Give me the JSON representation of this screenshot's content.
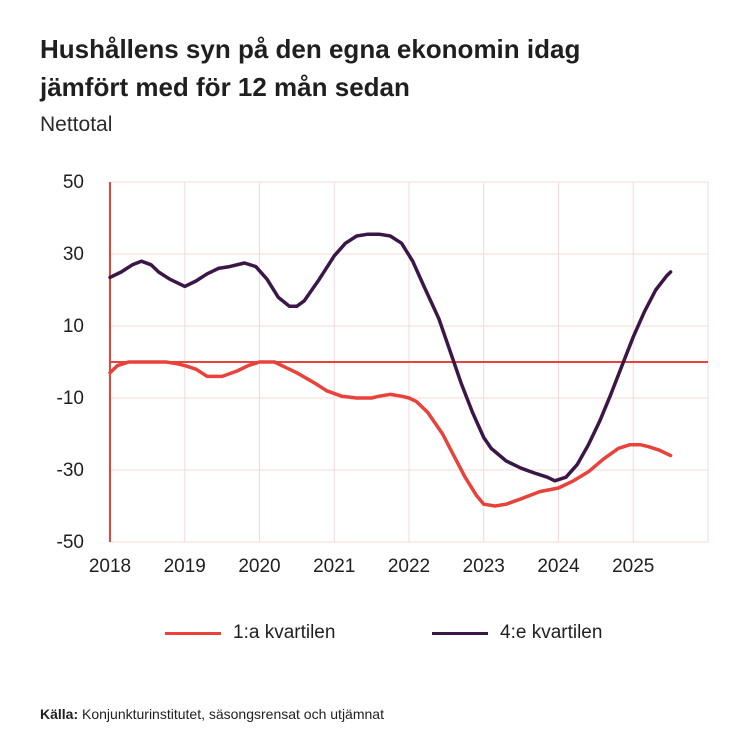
{
  "header": {
    "title_line1": "Hushållens syn på den egna ekonomin idag",
    "title_line2": "jämfört med för 12 mån sedan",
    "unit": "Nettotal"
  },
  "source": {
    "label": "Källa:",
    "text": "Konjunkturinstitutet, säsongsrensat och utjämnat"
  },
  "colors": {
    "q1": "#e8423a",
    "q4": "#3b1748",
    "axis": "#e8423a",
    "grid": "#f6d9d7"
  },
  "chart_data": {
    "type": "line",
    "title": "Hushållens syn på den egna ekonomin idag jämfört med för 12 mån sedan",
    "ylabel": "Nettotal",
    "ylim": [
      -50,
      50
    ],
    "yticks": [
      50,
      30,
      10,
      -10,
      -30,
      -50
    ],
    "xlim": [
      2018,
      2026
    ],
    "xticks": [
      2018,
      2019,
      2020,
      2021,
      2022,
      2023,
      2024,
      2025
    ],
    "grid": true,
    "legend": "bottom",
    "series": [
      {
        "name": "1:a kvartilen",
        "color": "#e8423a",
        "points": [
          [
            2018.0,
            -3
          ],
          [
            2018.1,
            -1
          ],
          [
            2018.25,
            0
          ],
          [
            2018.5,
            0
          ],
          [
            2018.75,
            0
          ],
          [
            2018.9,
            -0.5
          ],
          [
            2019.0,
            -1
          ],
          [
            2019.15,
            -2
          ],
          [
            2019.3,
            -4
          ],
          [
            2019.5,
            -4
          ],
          [
            2019.7,
            -2.5
          ],
          [
            2019.85,
            -1
          ],
          [
            2020.0,
            0
          ],
          [
            2020.2,
            0
          ],
          [
            2020.35,
            -1.5
          ],
          [
            2020.5,
            -3
          ],
          [
            2020.75,
            -6
          ],
          [
            2020.9,
            -8
          ],
          [
            2021.1,
            -9.5
          ],
          [
            2021.3,
            -10
          ],
          [
            2021.5,
            -10
          ],
          [
            2021.6,
            -9.5
          ],
          [
            2021.75,
            -9
          ],
          [
            2021.9,
            -9.5
          ],
          [
            2022.0,
            -10
          ],
          [
            2022.1,
            -11
          ],
          [
            2022.25,
            -14
          ],
          [
            2022.45,
            -20
          ],
          [
            2022.6,
            -26
          ],
          [
            2022.75,
            -32
          ],
          [
            2022.9,
            -37
          ],
          [
            2023.0,
            -39.5
          ],
          [
            2023.15,
            -40
          ],
          [
            2023.3,
            -39.5
          ],
          [
            2023.5,
            -38
          ],
          [
            2023.75,
            -36
          ],
          [
            2024.0,
            -35
          ],
          [
            2024.2,
            -33
          ],
          [
            2024.4,
            -30.5
          ],
          [
            2024.6,
            -27
          ],
          [
            2024.8,
            -24
          ],
          [
            2024.95,
            -23
          ],
          [
            2025.1,
            -23
          ],
          [
            2025.2,
            -23.5
          ],
          [
            2025.35,
            -24.5
          ],
          [
            2025.5,
            -26
          ]
        ]
      },
      {
        "name": "4:e kvartilen",
        "color": "#3b1748",
        "points": [
          [
            2018.0,
            23.5
          ],
          [
            2018.15,
            25
          ],
          [
            2018.3,
            27
          ],
          [
            2018.42,
            28
          ],
          [
            2018.55,
            27
          ],
          [
            2018.65,
            25
          ],
          [
            2018.8,
            23
          ],
          [
            2019.0,
            21
          ],
          [
            2019.15,
            22.5
          ],
          [
            2019.3,
            24.5
          ],
          [
            2019.45,
            26
          ],
          [
            2019.6,
            26.5
          ],
          [
            2019.8,
            27.5
          ],
          [
            2019.95,
            26.5
          ],
          [
            2020.1,
            23
          ],
          [
            2020.25,
            18
          ],
          [
            2020.4,
            15.5
          ],
          [
            2020.5,
            15.5
          ],
          [
            2020.6,
            17
          ],
          [
            2020.8,
            23
          ],
          [
            2021.0,
            29.5
          ],
          [
            2021.15,
            33
          ],
          [
            2021.3,
            35
          ],
          [
            2021.45,
            35.5
          ],
          [
            2021.6,
            35.5
          ],
          [
            2021.75,
            35
          ],
          [
            2021.9,
            33
          ],
          [
            2022.05,
            28
          ],
          [
            2022.2,
            21
          ],
          [
            2022.4,
            12
          ],
          [
            2022.55,
            3
          ],
          [
            2022.7,
            -6
          ],
          [
            2022.85,
            -14
          ],
          [
            2023.0,
            -21
          ],
          [
            2023.1,
            -24
          ],
          [
            2023.3,
            -27.5
          ],
          [
            2023.5,
            -29.5
          ],
          [
            2023.7,
            -31
          ],
          [
            2023.85,
            -32
          ],
          [
            2023.95,
            -33
          ],
          [
            2024.1,
            -32
          ],
          [
            2024.25,
            -28.5
          ],
          [
            2024.4,
            -23
          ],
          [
            2024.55,
            -16.5
          ],
          [
            2024.7,
            -9
          ],
          [
            2024.85,
            -1
          ],
          [
            2025.0,
            7
          ],
          [
            2025.15,
            14
          ],
          [
            2025.3,
            20
          ],
          [
            2025.45,
            24
          ],
          [
            2025.5,
            25
          ]
        ]
      }
    ],
    "reference_line": 0
  }
}
